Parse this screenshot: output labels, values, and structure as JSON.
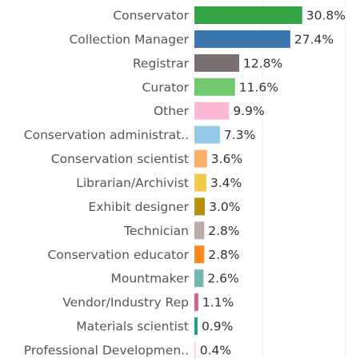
{
  "chart_data": {
    "type": "bar",
    "orientation": "horizontal",
    "categories": [
      "Conservator",
      "Collection Manager",
      "Registrar",
      "Curator",
      "Other",
      "Conservation administrat..",
      "Conservation scientist",
      "Librarian/Archivist",
      "Exhibit designer",
      "Technician",
      "Conservation educator",
      "Mountmaker",
      "Vendor/Industry Rep",
      "Materials scientist",
      "Professional Developmen.."
    ],
    "values": [
      30.8,
      27.4,
      12.8,
      11.6,
      9.9,
      7.3,
      3.6,
      3.4,
      3.0,
      2.8,
      2.8,
      2.6,
      1.1,
      0.9,
      0.4
    ],
    "value_labels": [
      "30.8%",
      "27.4%",
      "12.8%",
      "11.6%",
      "9.9%",
      "7.3%",
      "3.6%",
      "3.4%",
      "3.0%",
      "2.8%",
      "2.8%",
      "2.6%",
      "1.1%",
      "0.9%",
      "0.4%"
    ],
    "colors": [
      "#35a447",
      "#3a77af",
      "#7a6e6f",
      "#72c96e",
      "#fbb7d3",
      "#96c9e8",
      "#fbb06a",
      "#f3c94a",
      "#b8900a",
      "#bcaca5",
      "#fb8a1b",
      "#6fb9b2",
      "#de5b8d",
      "#279a8e",
      "#fdd3df"
    ],
    "xlim": [
      0,
      40
    ]
  }
}
